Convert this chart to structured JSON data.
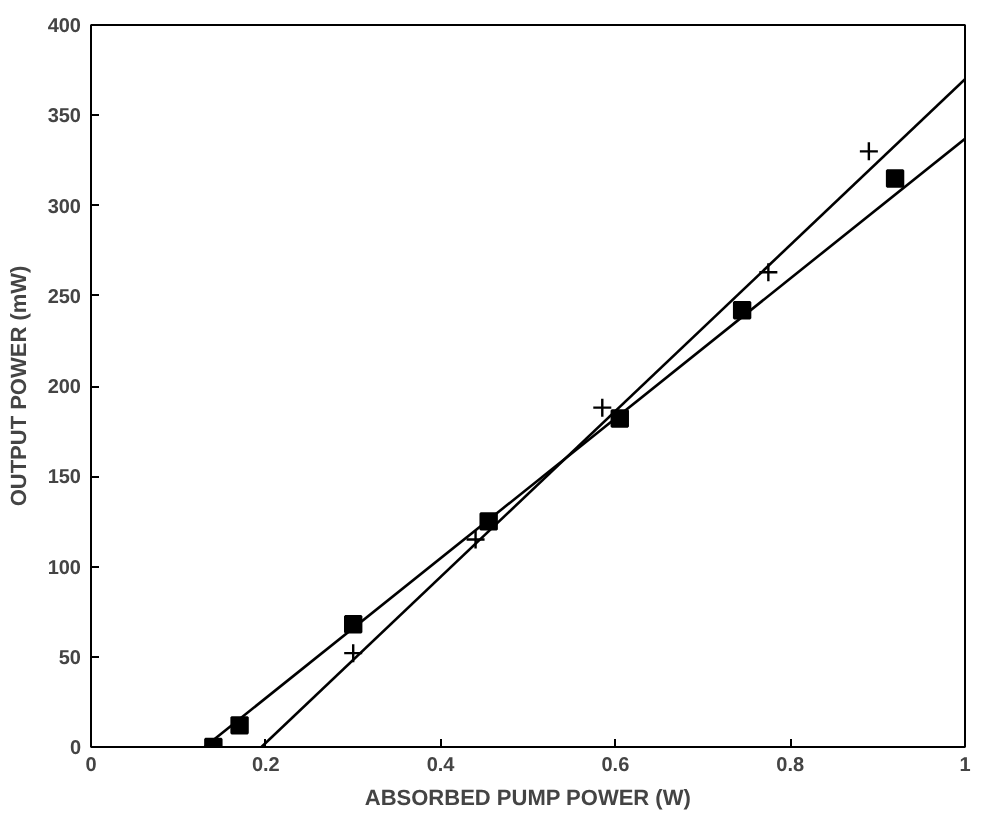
{
  "chart_data": {
    "type": "scatter",
    "xlabel": "ABSORBED PUMP POWER (W)",
    "ylabel": "OUTPUT POWER (mW)",
    "xlim": [
      0,
      1
    ],
    "ylim": [
      0,
      400
    ],
    "xticks": [
      0,
      0.2,
      0.4,
      0.6,
      0.8,
      1
    ],
    "yticks": [
      0,
      50,
      100,
      150,
      200,
      250,
      300,
      350,
      400
    ],
    "grid": false,
    "series": [
      {
        "marker": "square",
        "color": "#000000",
        "x": [
          0.14,
          0.17,
          0.3,
          0.455,
          0.605,
          0.745,
          0.92
        ],
        "values": [
          0,
          12,
          68,
          125,
          182,
          242,
          315
        ]
      },
      {
        "marker": "cross",
        "color": "#000000",
        "x": [
          0.3,
          0.44,
          0.585,
          0.775,
          0.89
        ],
        "values": [
          52,
          115,
          188,
          263,
          330
        ]
      },
      {
        "type": "line",
        "marker": "none",
        "color": "#000000",
        "x": [
          0.13,
          1
        ],
        "values": [
          0,
          337
        ]
      },
      {
        "type": "line",
        "marker": "none",
        "color": "#000000",
        "x": [
          0.195,
          1
        ],
        "values": [
          0,
          370
        ]
      }
    ]
  }
}
